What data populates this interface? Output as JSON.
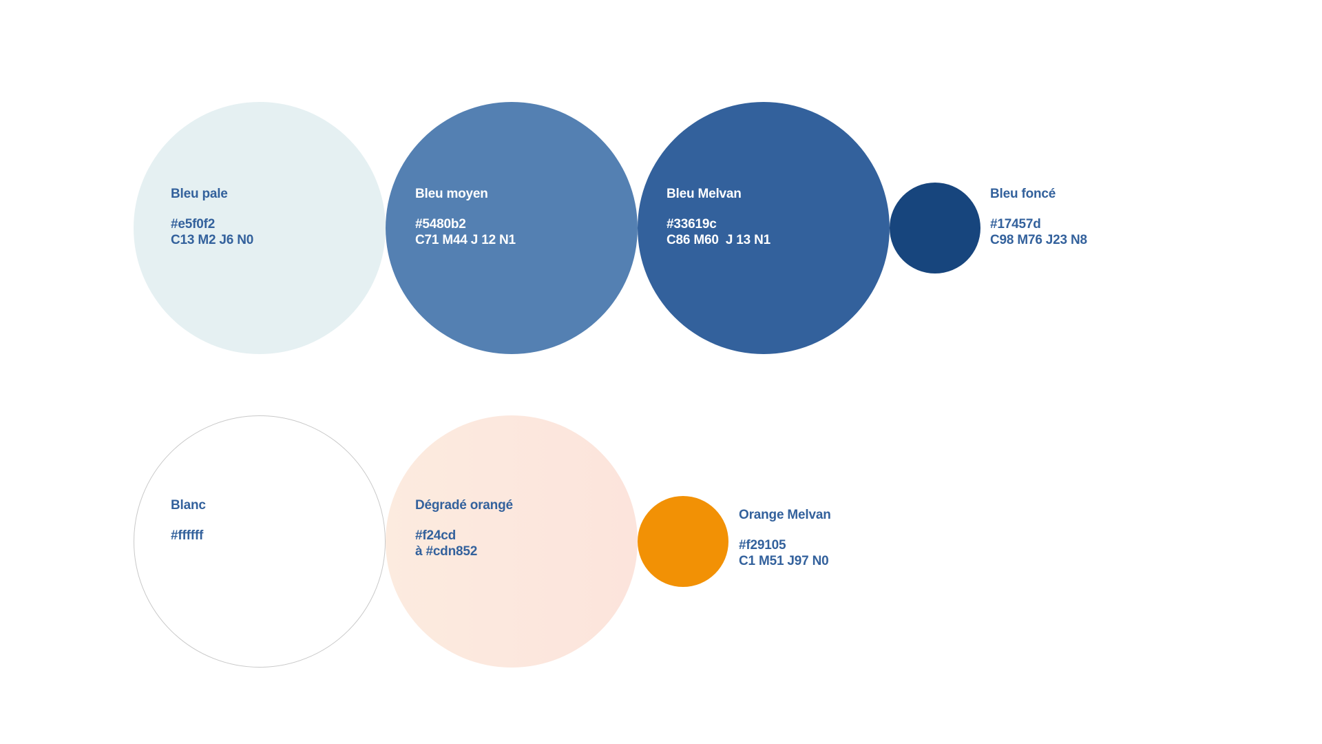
{
  "swatches": {
    "bleu_pale": {
      "name": "Bleu pale",
      "lines": [
        "#e5f0f2",
        "C13 M2 J6 N0"
      ],
      "fill": "#e5f0f2"
    },
    "bleu_moyen": {
      "name": "Bleu moyen",
      "lines": [
        "#5480b2",
        "C71 M44 J 12 N1"
      ],
      "fill": "#5480b2"
    },
    "bleu_melvan": {
      "name": "Bleu Melvan",
      "lines": [
        "#33619c",
        "C86 M60  J 13 N1"
      ],
      "fill": "#33619c"
    },
    "bleu_fonce": {
      "name": "Bleu foncé",
      "lines": [
        "#17457d",
        "C98 M76 J23 N8"
      ],
      "fill": "#17457d"
    },
    "blanc": {
      "name": "Blanc",
      "lines": [
        "#ffffff"
      ],
      "fill": "#ffffff"
    },
    "degrade_orange": {
      "name": "Dégradé orangé",
      "lines": [
        "#f24cd",
        "à #cdn852"
      ],
      "gradient_from": "#fcebdf",
      "gradient_to": "#fce4dc"
    },
    "orange_melvan": {
      "name": "Orange Melvan",
      "lines": [
        "#f29105",
        "C1 M51 J97 N0"
      ],
      "fill": "#f29105"
    }
  },
  "colors": {
    "label_dark": "#33619c",
    "label_light": "#ffffff",
    "outline": "#c8c8c8"
  }
}
